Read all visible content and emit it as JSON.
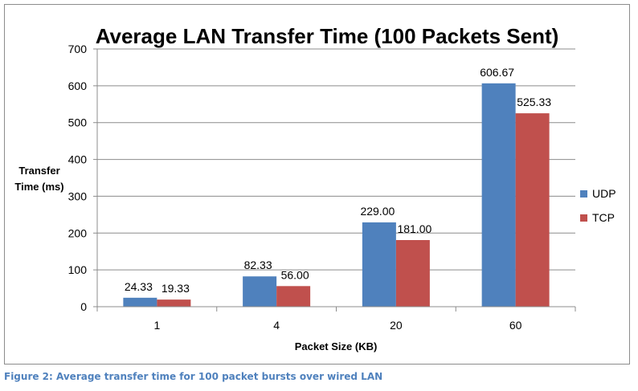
{
  "chart_data": {
    "type": "bar",
    "title": "Average LAN Transfer Time (100 Packets Sent)",
    "xlabel": "Packet Size (KB)",
    "ylabel_lines": [
      "Transfer",
      "Time (ms)"
    ],
    "categories": [
      "1",
      "4",
      "20",
      "60"
    ],
    "series": [
      {
        "name": "UDP",
        "color": "#4f81bd",
        "values": [
          24.33,
          82.33,
          229.0,
          606.67
        ],
        "labels": [
          "24.33",
          "82.33",
          "229.00",
          "606.67"
        ]
      },
      {
        "name": "TCP",
        "color": "#c0504d",
        "values": [
          19.33,
          56.0,
          181.0,
          525.33
        ],
        "labels": [
          "19.33",
          "56.00",
          "181.00",
          "525.33"
        ]
      }
    ],
    "ylim": [
      0,
      700
    ],
    "yticks": [
      0,
      100,
      200,
      300,
      400,
      500,
      600,
      700
    ],
    "grid": true,
    "legend_position": "right"
  },
  "caption": "Figure 2: Average transfer time for 100 packet bursts over wired LAN"
}
